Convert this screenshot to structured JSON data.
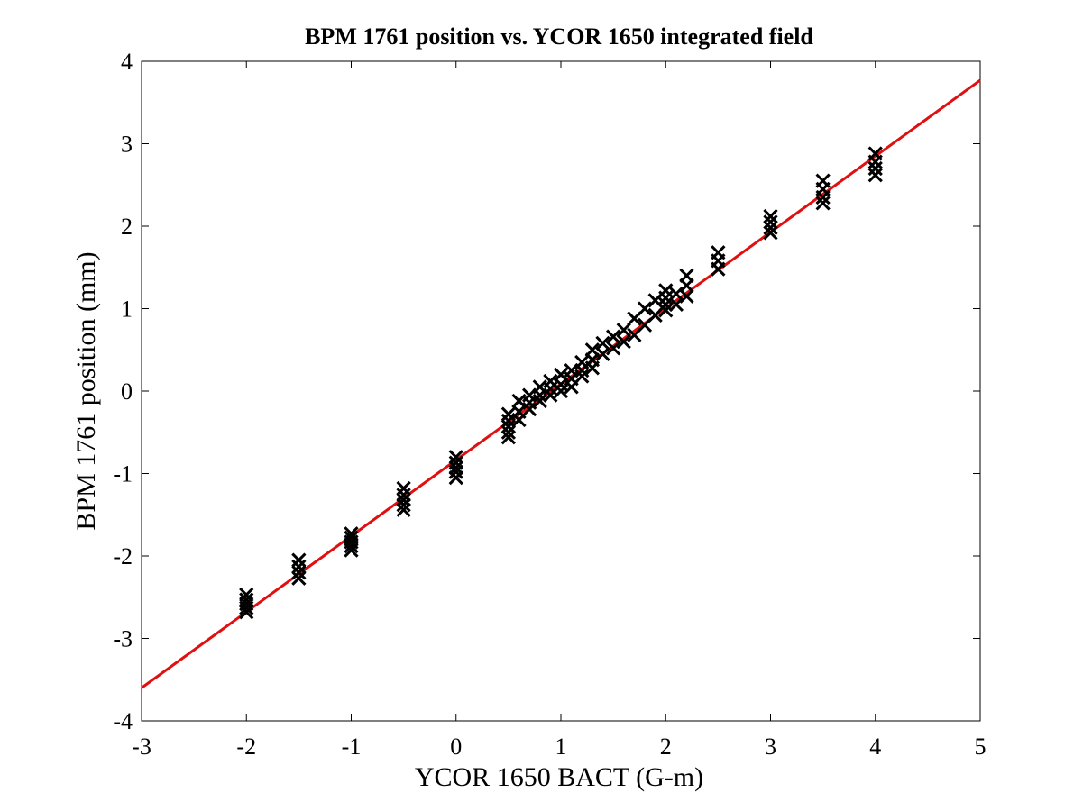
{
  "chart_data": {
    "type": "scatter",
    "title": "BPM 1761 position vs. YCOR 1650 integrated field",
    "xlabel": "YCOR 1650 BACT (G-m)",
    "ylabel": "BPM 1761 position (mm)",
    "xlim": [
      -3,
      5
    ],
    "ylim": [
      -4,
      4
    ],
    "xticks": [
      "-3",
      "-2",
      "-1",
      "0",
      "1",
      "2",
      "3",
      "4",
      "5"
    ],
    "yticks": [
      "-4",
      "-3",
      "-2",
      "-1",
      "0",
      "1",
      "2",
      "3",
      "4"
    ],
    "grid": false,
    "legend": "none",
    "series": [
      {
        "marker": "x",
        "color": "#000000",
        "x": [
          -2,
          -2,
          -2,
          -2,
          -2,
          -1.5,
          -1.5,
          -1.5,
          -1.5,
          -1,
          -1,
          -1,
          -1,
          -1,
          -0.5,
          -0.5,
          -0.5,
          -0.5,
          -0.5,
          0,
          0,
          0,
          0,
          0,
          0.5,
          0.5,
          0.5,
          0.5,
          0.5,
          0.6,
          0.6,
          0.6,
          0.7,
          0.7,
          0.7,
          0.8,
          0.8,
          0.8,
          0.9,
          0.9,
          0.9,
          1.0,
          1.0,
          1.0,
          1.1,
          1.1,
          1.1,
          1.2,
          1.2,
          1.2,
          1.3,
          1.3,
          1.3,
          1.4,
          1.4,
          1.5,
          1.5,
          1.6,
          1.6,
          1.7,
          1.7,
          1.8,
          1.8,
          1.9,
          1.9,
          2.0,
          2.0,
          2.0,
          2.0,
          2.1,
          2.1,
          2.2,
          2.2,
          2.2,
          2.5,
          2.5,
          2.5,
          3,
          3,
          3,
          3,
          3.5,
          3.5,
          3.5,
          3.5,
          4,
          4,
          4,
          4
        ],
        "y": [
          -2.47,
          -2.53,
          -2.58,
          -2.63,
          -2.68,
          -2.05,
          -2.13,
          -2.2,
          -2.27,
          -1.73,
          -1.78,
          -1.83,
          -1.88,
          -1.93,
          -1.18,
          -1.26,
          -1.32,
          -1.38,
          -1.44,
          -0.8,
          -0.87,
          -0.93,
          -0.98,
          -1.05,
          -0.28,
          -0.36,
          -0.43,
          -0.5,
          -0.56,
          -0.12,
          -0.25,
          -0.35,
          -0.05,
          -0.14,
          -0.22,
          0.05,
          -0.05,
          -0.12,
          0.12,
          0.03,
          -0.05,
          0.2,
          0.08,
          0.0,
          0.25,
          0.15,
          0.05,
          0.35,
          0.25,
          0.18,
          0.5,
          0.38,
          0.28,
          0.58,
          0.45,
          0.66,
          0.52,
          0.74,
          0.6,
          0.88,
          0.68,
          1.0,
          0.8,
          1.1,
          0.92,
          1.22,
          1.13,
          1.05,
          0.98,
          1.18,
          1.05,
          1.4,
          1.28,
          1.15,
          1.68,
          1.58,
          1.48,
          2.12,
          2.05,
          1.98,
          1.92,
          2.55,
          2.45,
          2.35,
          2.28,
          2.88,
          2.78,
          2.7,
          2.62
        ]
      },
      {
        "style": "line",
        "color": "#e01010",
        "x": [
          -3,
          5
        ],
        "y": [
          -3.6,
          3.77
        ]
      }
    ]
  }
}
